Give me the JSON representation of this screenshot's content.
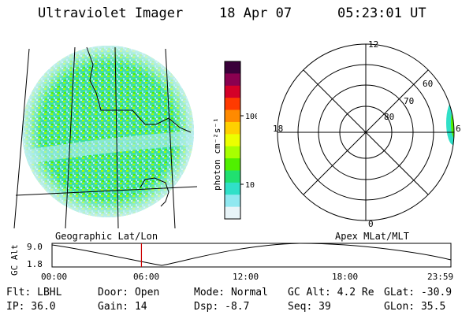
{
  "header": {
    "instrument": "Ultraviolet Imager",
    "date": "18 Apr 07",
    "time": "05:23:01 UT"
  },
  "colorbar": {
    "unit_label": "photon cm⁻²s⁻¹",
    "ticks": [
      "100",
      "10"
    ],
    "colors": [
      "#3a003a",
      "#8a0050",
      "#d40028",
      "#ff3a00",
      "#ff8a00",
      "#ffd000",
      "#ecff00",
      "#a8ff00",
      "#50f000",
      "#20e070",
      "#30e0c8",
      "#90e8f0",
      "#e8f4f8"
    ]
  },
  "geo_panel": {
    "label": "Geographic Lat/Lon"
  },
  "polar_panel": {
    "label": "Apex MLat/MLT",
    "ring_labels": [
      "60",
      "70",
      "80"
    ],
    "mlt_labels": {
      "top": "12",
      "left": "18",
      "right": "6",
      "bottom": "0"
    }
  },
  "altitude_plot": {
    "ylabel": "GC Alt",
    "ymax": "9.0",
    "ymin": "1.8",
    "xticks": [
      "00:00",
      "06:00",
      "12:00",
      "18:00",
      "23:59"
    ],
    "current_time_hours": 5.38,
    "marker_color": "#cc0000"
  },
  "status": {
    "flt": "Flt: LBHL",
    "door": "Door: Open",
    "mode": "Mode: Normal",
    "gc_alt": "GC Alt: 4.2 Re",
    "glat": "GLat: -30.9",
    "ip": "IP: 36.0",
    "gain": "Gain: 14",
    "dsp": "Dsp:   -8.7",
    "seq": "Seq: 39",
    "glon": "GLon:  35.5"
  }
}
